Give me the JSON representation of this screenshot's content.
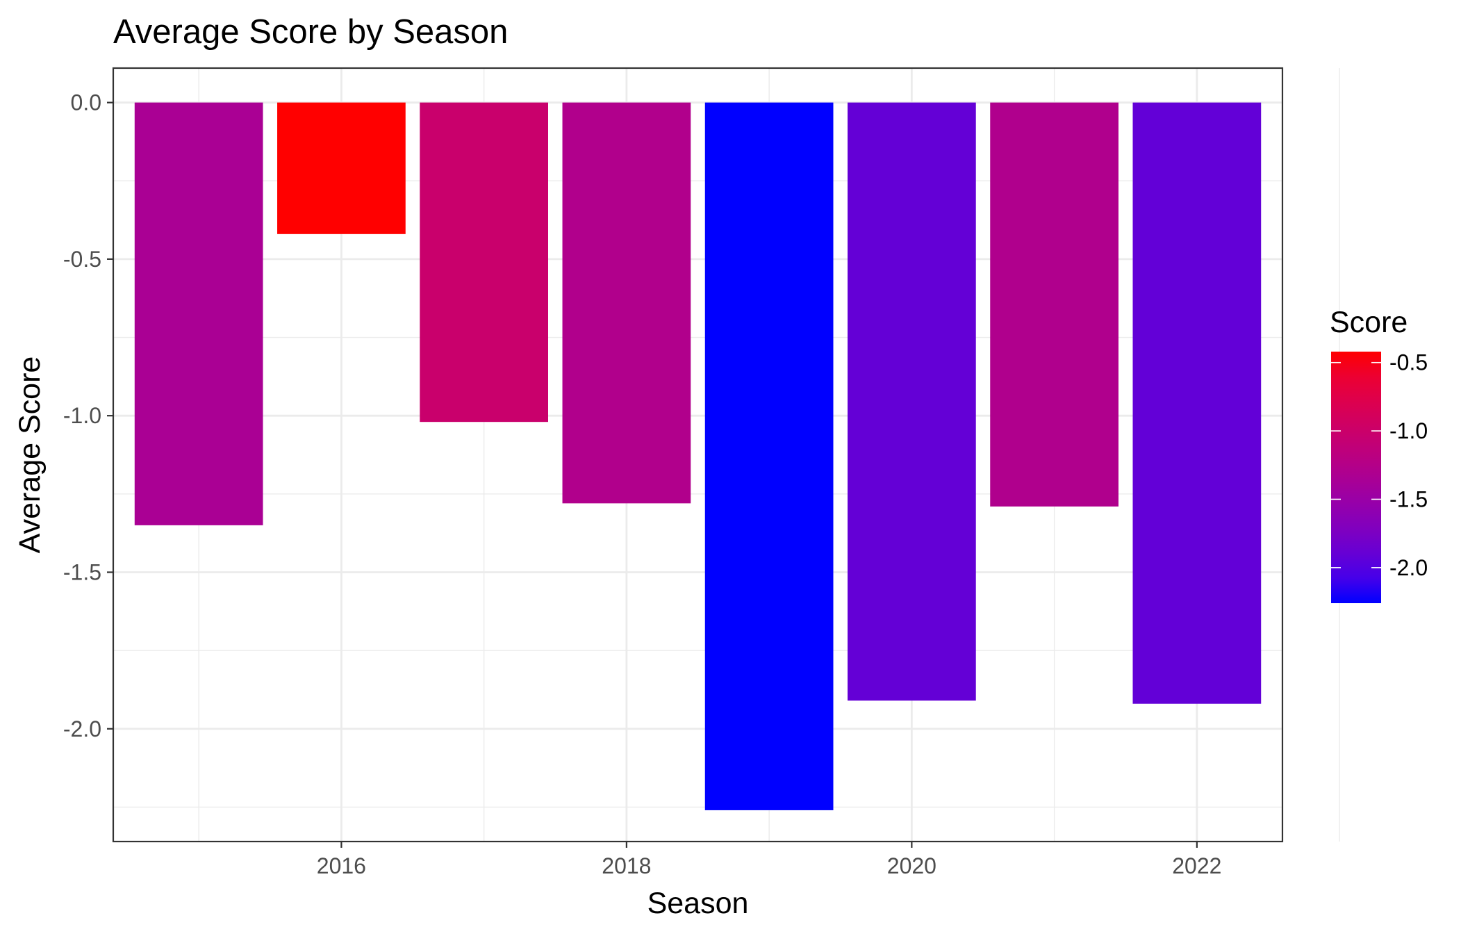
{
  "chart_data": {
    "type": "bar",
    "title": "Average Score by Season",
    "xlabel": "Season",
    "ylabel": "Average Score",
    "categories": [
      2015,
      2016,
      2017,
      2018,
      2019,
      2020,
      2021,
      2022
    ],
    "values": [
      -1.35,
      -0.42,
      -1.02,
      -1.28,
      -2.26,
      -1.91,
      -1.29,
      -1.92
    ],
    "xlim": [
      2014.4,
      2022.6
    ],
    "ylim": [
      -2.36,
      0.11
    ],
    "x_ticks": [
      2016,
      2018,
      2020,
      2022
    ],
    "x_tick_labels": [
      "2016",
      "2018",
      "2020",
      "2022"
    ],
    "y_ticks": [
      0.0,
      -0.5,
      -1.0,
      -1.5,
      -2.0
    ],
    "y_tick_labels": [
      "0.0",
      "-0.5",
      "-1.0",
      "-1.5",
      "-2.0"
    ],
    "grid": true,
    "legend": {
      "title": "Score",
      "placement": "right",
      "breaks": [
        -0.5,
        -1.0,
        -1.5,
        -2.0
      ],
      "break_labels": [
        "-0.5",
        "-1.0",
        "-1.5",
        "-2.0"
      ],
      "low_color": "#0000ff",
      "high_color": "#ff0000",
      "range": [
        -2.26,
        -0.42
      ]
    }
  }
}
